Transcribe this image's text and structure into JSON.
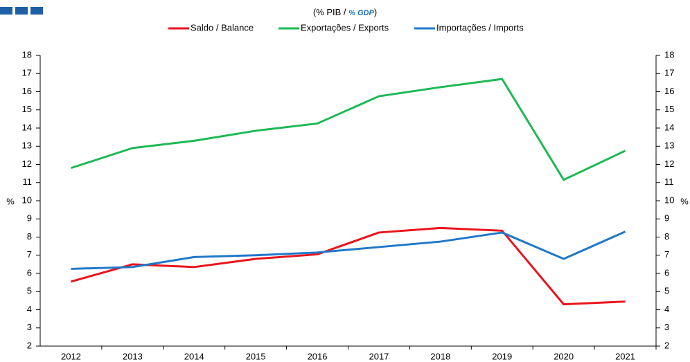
{
  "chart_data": {
    "type": "line",
    "subtitle": [
      "(% PIB / ",
      "% GDP",
      ")"
    ],
    "ylabel": "%",
    "y2label": "%",
    "categories": [
      "2012",
      "2013",
      "2014",
      "2015",
      "2016",
      "2017",
      "2018",
      "2019",
      "2020",
      "2021"
    ],
    "series": [
      {
        "name": "Saldo / Balance",
        "color": "#e8141b",
        "values": [
          5.55,
          6.5,
          6.35,
          6.8,
          7.05,
          8.25,
          8.5,
          8.35,
          4.3,
          4.45
        ]
      },
      {
        "name": "Exportações / Exports",
        "color": "#1db954",
        "values": [
          11.8,
          12.9,
          13.3,
          13.85,
          14.25,
          15.75,
          16.25,
          16.7,
          11.15,
          12.75
        ]
      },
      {
        "name": "Importações / Imports",
        "color": "#1f78c8",
        "values": [
          6.25,
          6.35,
          6.9,
          7.0,
          7.15,
          7.45,
          7.75,
          8.25,
          6.8,
          8.3
        ]
      }
    ],
    "ylim": [
      2,
      18
    ],
    "yticks": [
      2,
      3,
      4,
      5,
      6,
      7,
      8,
      9,
      10,
      11,
      12,
      13,
      14,
      15,
      16,
      17,
      18
    ],
    "y2lim": [
      2,
      18
    ],
    "y2ticks": [
      2,
      3,
      4,
      5,
      6,
      7,
      8,
      9,
      10,
      11,
      12,
      13,
      14,
      15,
      16,
      17,
      18
    ],
    "grid": false,
    "legend": "top"
  }
}
